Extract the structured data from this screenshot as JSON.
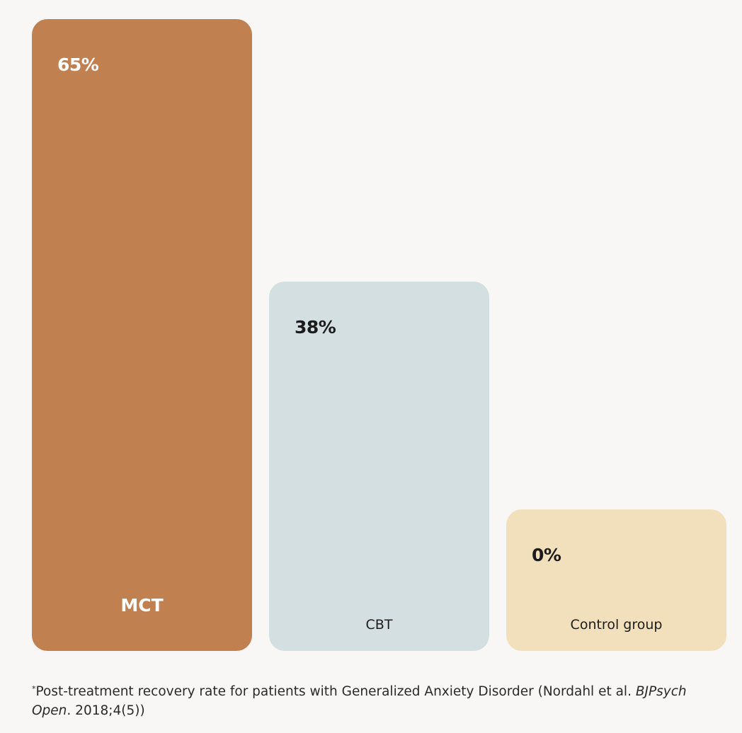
{
  "chart_data": {
    "type": "bar",
    "categories": [
      "MCT",
      "CBT",
      "Control group"
    ],
    "values": [
      65,
      38,
      0
    ],
    "value_labels": [
      "65%",
      "38%",
      "0%"
    ],
    "colors": [
      "#c1804f",
      "#d3dfe0",
      "#f2dfbb"
    ],
    "text_colors": [
      "#ffffff",
      "#1c1c1c",
      "#1c1c1c"
    ],
    "title": "",
    "xlabel": "",
    "ylabel": "",
    "ylim": [
      0,
      65
    ],
    "grid": false
  },
  "footnote": {
    "marker": "*",
    "text": "Post-treatment recovery rate for patients with Generalized Anxiety Disorder (Nordahl et al. ",
    "journal": "BJPsych Open",
    "citation": ". 2018;4(5))"
  }
}
